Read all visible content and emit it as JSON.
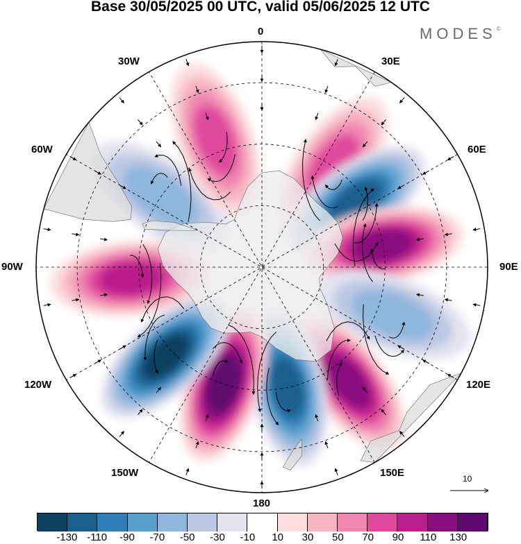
{
  "title": "Base 30/05/2025 00 UTC, valid 05/06/2025 12 UTC",
  "brand": "MODES",
  "brand_mark": "©",
  "longitude_labels": {
    "lon_0": "0",
    "lon_30e": "30E",
    "lon_60e": "60E",
    "lon_90e": "90E",
    "lon_120e": "120E",
    "lon_150e": "150E",
    "lon_180": "180",
    "lon_150w": "150W",
    "lon_120w": "120W",
    "lon_90w": "90W",
    "lon_60w": "60W",
    "lon_30w": "30W"
  },
  "reference_vector_label": "10",
  "colorbar": {
    "colors": [
      "#0d3f5e",
      "#1a5f8e",
      "#2f7fb6",
      "#5aa0cf",
      "#8fb6dc",
      "#bcc8e3",
      "#e3e3f0",
      "#ffffff",
      "#fbdde0",
      "#f7b5c3",
      "#f086b0",
      "#e0489d",
      "#bb1f8c",
      "#8a0e7f",
      "#5d0a6e"
    ],
    "tick_labels": [
      "-130",
      "-110",
      "-90",
      "-70",
      "-50",
      "-30",
      "-10",
      "10",
      "30",
      "50",
      "70",
      "90",
      "110",
      "130"
    ]
  },
  "anomaly_centers": [
    {
      "lon": 35,
      "colat": 30,
      "value": 70
    },
    {
      "lon": 55,
      "colat": 28,
      "value": -110
    },
    {
      "lon": 80,
      "colat": 30,
      "value": 110
    },
    {
      "lon": 110,
      "colat": 34,
      "value": -50
    },
    {
      "lon": 143,
      "colat": 35,
      "value": 110
    },
    {
      "lon": 168,
      "colat": 30,
      "value": -110
    },
    {
      "lon": -162,
      "colat": 30,
      "value": 130
    },
    {
      "lon": -133,
      "colat": 32,
      "value": -130
    },
    {
      "lon": -95,
      "colat": 32,
      "value": 90
    },
    {
      "lon": -55,
      "colat": 30,
      "value": -50
    },
    {
      "lon": -20,
      "colat": 33,
      "value": 70
    }
  ]
}
